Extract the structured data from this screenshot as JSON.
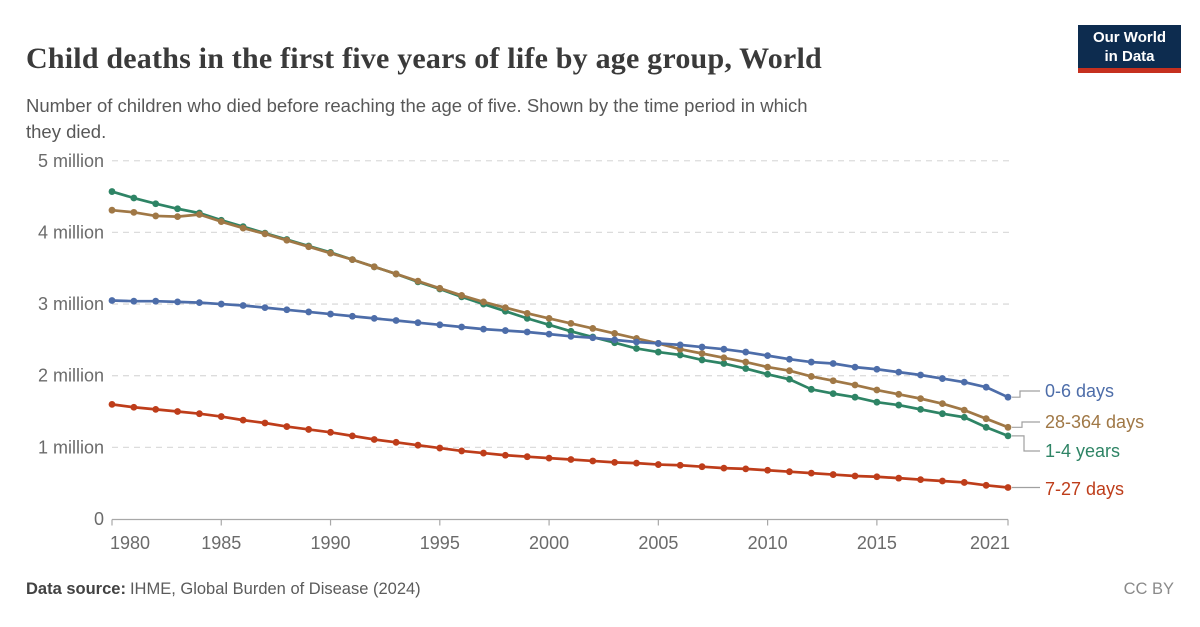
{
  "header": {
    "title": "Child deaths in the first five years of life by age group, World",
    "subtitle_line1": "Number of children who died before reaching the age of five. Shown by the time period in which",
    "subtitle_line2": "they died.",
    "logo_line1": "Our World",
    "logo_line2": "in Data"
  },
  "colors": {
    "logo_bg": "#0D2C4F",
    "logo_bar": "#C5301F",
    "grid": "#DCDCDC",
    "axis": "#A8A8A8",
    "tick_label": "#6B6B6B",
    "connector": "#A0A0A0"
  },
  "chart_data": {
    "type": "line",
    "title": "Child deaths in the first five years of life by age group, World",
    "xlabel": "",
    "ylabel": "",
    "ylim": [
      0,
      5000000
    ],
    "xlim": [
      1980,
      2021
    ],
    "grid": "horizontal-dashed",
    "legend_position": "right-of-lines",
    "units": "deaths per year",
    "x": [
      1980,
      1981,
      1982,
      1983,
      1984,
      1985,
      1986,
      1987,
      1988,
      1989,
      1990,
      1991,
      1992,
      1993,
      1994,
      1995,
      1996,
      1997,
      1998,
      1999,
      2000,
      2001,
      2002,
      2003,
      2004,
      2005,
      2006,
      2007,
      2008,
      2009,
      2010,
      2011,
      2012,
      2013,
      2014,
      2015,
      2016,
      2017,
      2018,
      2019,
      2020,
      2021
    ],
    "x_ticks": [
      1980,
      1985,
      1990,
      1995,
      2000,
      2005,
      2010,
      2015,
      2021
    ],
    "y_ticks": [
      {
        "value": 0,
        "label": "0"
      },
      {
        "value": 1,
        "label": "1 million"
      },
      {
        "value": 2,
        "label": "2 million"
      },
      {
        "value": 3,
        "label": "3 million"
      },
      {
        "value": 4,
        "label": "4 million"
      },
      {
        "value": 5,
        "label": "5 million"
      }
    ],
    "series": [
      {
        "name": "0-6 days",
        "color": "#4D6DA9",
        "values_millions": [
          3.05,
          3.04,
          3.04,
          3.03,
          3.02,
          3.0,
          2.98,
          2.95,
          2.92,
          2.89,
          2.86,
          2.83,
          2.8,
          2.77,
          2.74,
          2.71,
          2.68,
          2.65,
          2.63,
          2.61,
          2.58,
          2.55,
          2.53,
          2.5,
          2.47,
          2.45,
          2.43,
          2.4,
          2.37,
          2.33,
          2.28,
          2.23,
          2.19,
          2.17,
          2.12,
          2.09,
          2.05,
          2.01,
          1.96,
          1.91,
          1.84,
          1.7
        ]
      },
      {
        "name": "28-364 days",
        "color": "#A07846",
        "values_millions": [
          4.31,
          4.28,
          4.23,
          4.22,
          4.25,
          4.15,
          4.06,
          3.98,
          3.89,
          3.8,
          3.71,
          3.62,
          3.52,
          3.42,
          3.32,
          3.22,
          3.12,
          3.03,
          2.95,
          2.87,
          2.8,
          2.73,
          2.66,
          2.59,
          2.52,
          2.45,
          2.37,
          2.31,
          2.25,
          2.19,
          2.12,
          2.07,
          1.99,
          1.93,
          1.87,
          1.8,
          1.74,
          1.68,
          1.61,
          1.52,
          1.4,
          1.28
        ]
      },
      {
        "name": "1-4 years",
        "color": "#2E8465",
        "values_millions": [
          4.57,
          4.48,
          4.4,
          4.33,
          4.27,
          4.17,
          4.08,
          3.99,
          3.9,
          3.81,
          3.72,
          3.62,
          3.52,
          3.42,
          3.31,
          3.21,
          3.1,
          3.0,
          2.9,
          2.8,
          2.71,
          2.62,
          2.54,
          2.46,
          2.38,
          2.33,
          2.29,
          2.22,
          2.17,
          2.1,
          2.02,
          1.95,
          1.81,
          1.75,
          1.7,
          1.63,
          1.59,
          1.53,
          1.47,
          1.42,
          1.28,
          1.16
        ]
      },
      {
        "name": "7-27 days",
        "color": "#BE3D1A",
        "values_millions": [
          1.6,
          1.56,
          1.53,
          1.5,
          1.47,
          1.43,
          1.38,
          1.34,
          1.29,
          1.25,
          1.21,
          1.16,
          1.11,
          1.07,
          1.03,
          0.99,
          0.95,
          0.92,
          0.89,
          0.87,
          0.85,
          0.83,
          0.81,
          0.79,
          0.78,
          0.76,
          0.75,
          0.73,
          0.71,
          0.7,
          0.68,
          0.66,
          0.64,
          0.62,
          0.6,
          0.59,
          0.57,
          0.55,
          0.53,
          0.51,
          0.47,
          0.44
        ]
      }
    ]
  },
  "footer": {
    "source_label": "Data source:",
    "source_value": "IHME, Global Burden of Disease (2024)",
    "license": "CC BY"
  }
}
